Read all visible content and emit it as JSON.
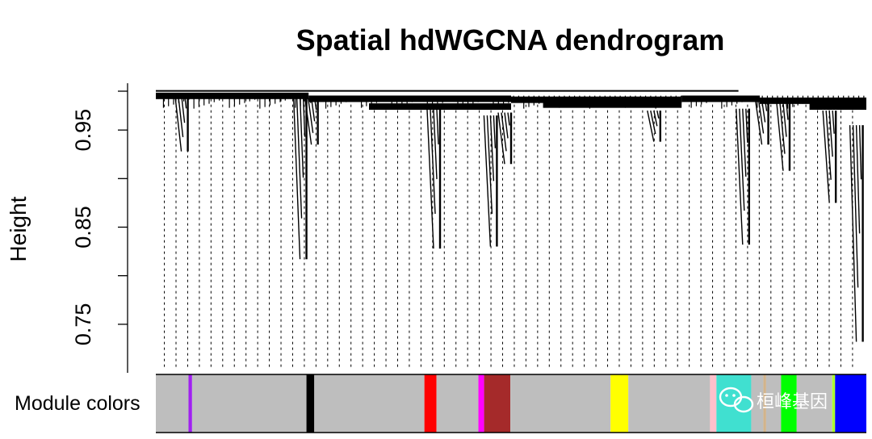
{
  "chart_data": {
    "type": "dendrogram",
    "title": "Spatial hdWGCNA dendrogram",
    "ylabel": "Height",
    "ylim": [
      0.7,
      0.99
    ],
    "yticks": [
      0.95,
      0.9,
      0.85,
      0.8,
      0.75
    ],
    "ytick_labels": [
      "0.95",
      "",
      "0.85",
      "",
      "0.75"
    ],
    "merge_height": 0.987,
    "leaf_min_height": 0.735,
    "color_bar_label": "Module colors",
    "clusters": [
      {
        "x": [
          0.0,
          0.215
        ],
        "top": 0.986,
        "bottom": 0.976,
        "color": "#b3b3b3"
      },
      {
        "x": [
          0.215,
          0.23
        ],
        "top": 0.983,
        "bottom": 0.945,
        "color": "#a020f0"
      },
      {
        "x": [
          0.23,
          0.215
        ],
        "top": 0.983,
        "bottom": 0.985,
        "color": "#b3b3b3"
      },
      {
        "x": [
          0.215,
          0.222
        ],
        "top": 0.984,
        "bottom": 0.975,
        "color": "#b3b3b3"
      },
      {
        "x": [
          0.228,
          0.235
        ],
        "top": 0.982,
        "bottom": 0.97,
        "color": "#b3b3b3"
      }
    ],
    "leaf_positions": [
      0.012,
      0.022,
      0.032,
      0.042,
      0.052,
      0.062,
      0.072,
      0.082,
      0.092,
      0.102,
      0.112,
      0.122,
      0.132,
      0.142,
      0.152,
      0.162,
      0.172,
      0.182,
      0.192,
      0.202,
      0.212,
      0.222
    ],
    "spines": [
      {
        "x": 0.045,
        "top": 0.987,
        "bottom": 0.928
      },
      {
        "x": 0.212,
        "top": 0.985,
        "bottom": 0.817
      },
      {
        "x": 0.228,
        "top": 0.983,
        "bottom": 0.935
      },
      {
        "x": 0.4,
        "top": 0.971,
        "bottom": 0.828
      },
      {
        "x": 0.48,
        "top": 0.965,
        "bottom": 0.83
      },
      {
        "x": 0.5,
        "top": 0.968,
        "bottom": 0.915
      },
      {
        "x": 0.71,
        "top": 0.97,
        "bottom": 0.938
      },
      {
        "x": 0.835,
        "top": 0.972,
        "bottom": 0.832
      },
      {
        "x": 0.862,
        "top": 0.981,
        "bottom": 0.935
      },
      {
        "x": 0.892,
        "top": 0.978,
        "bottom": 0.908
      },
      {
        "x": 0.957,
        "top": 0.97,
        "bottom": 0.875
      },
      {
        "x": 0.995,
        "top": 0.955,
        "bottom": 0.732
      }
    ],
    "clades": [
      {
        "x": [
          0.0,
          0.215
        ],
        "top": 0.986
      },
      {
        "x": [
          0.215,
          0.5
        ],
        "top": 0.983
      },
      {
        "x": [
          0.3,
          0.5
        ],
        "top": 0.975
      },
      {
        "x": [
          0.5,
          0.74
        ],
        "top": 0.982
      },
      {
        "x": [
          0.74,
          0.85
        ],
        "top": 0.983
      },
      {
        "x": [
          0.85,
          1.0
        ],
        "top": 0.981
      },
      {
        "x": [
          0.545,
          0.74
        ],
        "top": 0.977
      },
      {
        "x": [
          0.92,
          1.0
        ],
        "top": 0.975
      }
    ],
    "module_colors": [
      {
        "start": 0.0,
        "end": 0.046,
        "color": "#bebebe"
      },
      {
        "start": 0.046,
        "end": 0.051,
        "color": "#a020f0"
      },
      {
        "start": 0.051,
        "end": 0.212,
        "color": "#bebebe"
      },
      {
        "start": 0.212,
        "end": 0.223,
        "color": "#000000"
      },
      {
        "start": 0.223,
        "end": 0.378,
        "color": "#bebebe"
      },
      {
        "start": 0.378,
        "end": 0.395,
        "color": "#ff0000"
      },
      {
        "start": 0.395,
        "end": 0.454,
        "color": "#bebebe"
      },
      {
        "start": 0.454,
        "end": 0.462,
        "color": "#ff00ff"
      },
      {
        "start": 0.462,
        "end": 0.499,
        "color": "#a52a2a"
      },
      {
        "start": 0.499,
        "end": 0.64,
        "color": "#bebebe"
      },
      {
        "start": 0.64,
        "end": 0.665,
        "color": "#ffff00"
      },
      {
        "start": 0.665,
        "end": 0.78,
        "color": "#bebebe"
      },
      {
        "start": 0.78,
        "end": 0.789,
        "color": "#ffc0cb"
      },
      {
        "start": 0.789,
        "end": 0.838,
        "color": "#40e0d0"
      },
      {
        "start": 0.838,
        "end": 0.855,
        "color": "#bebebe"
      },
      {
        "start": 0.855,
        "end": 0.859,
        "color": "#d2b48c"
      },
      {
        "start": 0.859,
        "end": 0.88,
        "color": "#bebebe"
      },
      {
        "start": 0.88,
        "end": 0.902,
        "color": "#00ff00"
      },
      {
        "start": 0.902,
        "end": 0.952,
        "color": "#bebebe"
      },
      {
        "start": 0.952,
        "end": 0.956,
        "color": "#adff2f"
      },
      {
        "start": 0.956,
        "end": 1.0,
        "color": "#0000ff"
      }
    ]
  },
  "watermark": {
    "text": "桓峰基因",
    "icon": "wechat-icon"
  }
}
